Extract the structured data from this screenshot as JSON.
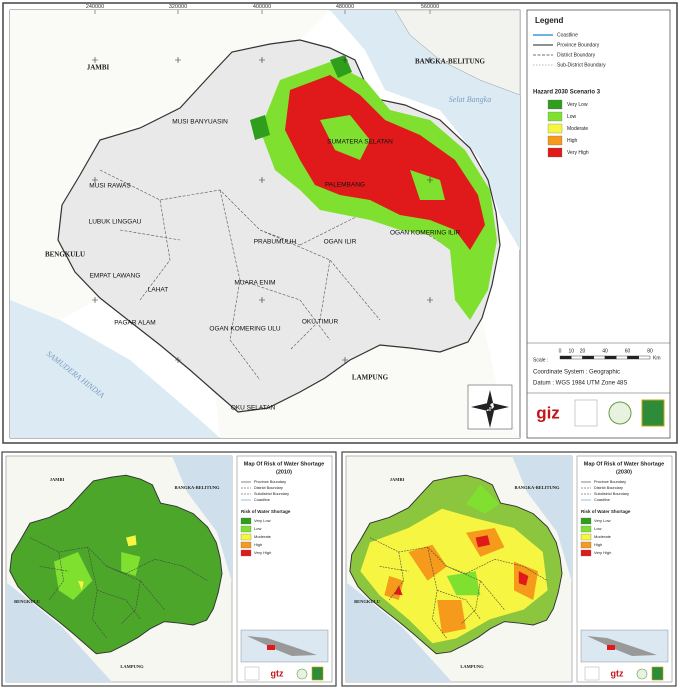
{
  "main_map": {
    "top_ticks": [
      "240000",
      "320000",
      "400000",
      "480000",
      "560000"
    ],
    "place_labels": [
      "JAMBI",
      "BANGKA-BELITUNG",
      "BENGKULU",
      "LAMPUNG"
    ],
    "sea_labels": [
      "Selat Bangka",
      "SAMUDERA HINDIA"
    ],
    "district_labels": [
      "MUSI BANYUASIN",
      "SUMATERA SELATAN",
      "MUSI RAWAS",
      "LUBUK LINGGAU",
      "PALEMBANG",
      "PRABUMULIH",
      "OGAN ILIR",
      "OGAN KOMERING ILIR",
      "MUARA ENIM",
      "EMPAT LAWANG",
      "LAHAT",
      "PAGAR ALAM",
      "OGAN KOMERING ULU",
      "OKU TIMUR",
      "OKU SELATAN"
    ],
    "legend": {
      "title": "Legend",
      "lines": [
        "Coastline",
        "Province Boundary",
        "District Boundary",
        "Sub-District Boundary"
      ],
      "hazard_title": "Hazard 2030 Scenario 3",
      "classes": [
        {
          "label": "Very Low",
          "color": "#2e9e1c"
        },
        {
          "label": "Low",
          "color": "#7fe030"
        },
        {
          "label": "Moderate",
          "color": "#f5f542"
        },
        {
          "label": "High",
          "color": "#f59a1a"
        },
        {
          "label": "Very High",
          "color": "#e01a1a"
        }
      ],
      "scale_label": "Scale :",
      "scale_ticks": [
        "0",
        "10",
        "20",
        "40",
        "60",
        "80"
      ],
      "scale_unit": "Km",
      "coordinate_system": "Coordinate System : Geographic",
      "datum": "Datum : WGS 1984 UTM Zone 48S",
      "logo": "giz"
    }
  },
  "maps_small": [
    {
      "title": "Map Of Risk of Water Shortage",
      "year": "(2010)",
      "place_labels": [
        "JAMBI",
        "BANGKA-BELITUNG",
        "BENGKULU",
        "LAMPUNG"
      ],
      "lines": [
        "Province Boundary",
        "District Boundary",
        "Subdistrict Boundary",
        "Coastline"
      ],
      "risk_title": "Risk of Water Shortage",
      "classes": [
        "Very Low",
        "Low",
        "Moderate",
        "High",
        "Very High"
      ],
      "logo": "gtz"
    },
    {
      "title": "Map Of Risk of Water Shortage",
      "year": "(2030)",
      "place_labels": [
        "JAMBI",
        "BANGKA-BELITUNG",
        "BENGKULU",
        "LAMPUNG"
      ],
      "lines": [
        "Province Boundary",
        "District Boundary",
        "Subdistrict Boundary",
        "Coastline"
      ],
      "risk_title": "Risk of Water Shortage",
      "classes": [
        "Very Low",
        "Low",
        "Moderate",
        "High",
        "Very High"
      ],
      "logo": "gtz"
    }
  ]
}
